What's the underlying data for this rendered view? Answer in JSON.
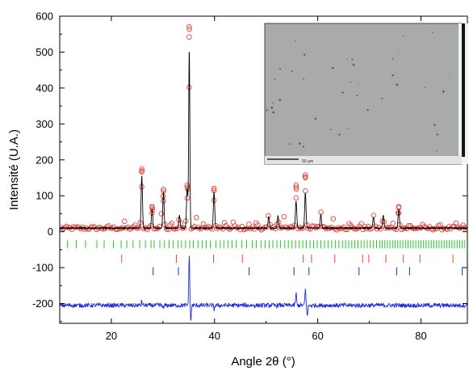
{
  "chart_data": {
    "type": "line",
    "xlabel": "Angle 2θ (°)",
    "ylabel": "Intensité (U.A.)",
    "xlim": [
      10,
      89
    ],
    "ylim": [
      -255,
      600
    ],
    "x_ticks": [
      "20",
      "40",
      "60",
      "80"
    ],
    "y_ticks": [
      "600",
      "500",
      "400",
      "300",
      "200",
      "100",
      "0",
      "-100",
      "-200"
    ],
    "grid": false,
    "legend": "none",
    "colors": {
      "observed": "#e8443a",
      "calculated": "#000000",
      "difference": "#1f2bd8",
      "phase1_reflections": "#22cc22",
      "phase2_reflections": "#e8443a",
      "phase3_reflections": "#1f2bd8"
    },
    "series": [
      {
        "role": "observed",
        "style": "open-circles",
        "baseline": 10,
        "peaks": [
          {
            "x": 19.6,
            "y": 14
          },
          {
            "x": 22.5,
            "y": 25
          },
          {
            "x": 24.7,
            "y": 18
          },
          {
            "x": 25.9,
            "y": 175
          },
          {
            "x": 27.9,
            "y": 70
          },
          {
            "x": 29.6,
            "y": 52
          },
          {
            "x": 30.1,
            "y": 118
          },
          {
            "x": 31.6,
            "y": 38
          },
          {
            "x": 33.2,
            "y": 50
          },
          {
            "x": 34.7,
            "y": 130
          },
          {
            "x": 35.1,
            "y": 570
          },
          {
            "x": 36.4,
            "y": 45
          },
          {
            "x": 38.0,
            "y": 25
          },
          {
            "x": 39.9,
            "y": 120
          },
          {
            "x": 42.0,
            "y": 25
          },
          {
            "x": 43.7,
            "y": 28
          },
          {
            "x": 46.7,
            "y": 18
          },
          {
            "x": 48.2,
            "y": 35
          },
          {
            "x": 50.5,
            "y": 48
          },
          {
            "x": 52.3,
            "y": 50
          },
          {
            "x": 53.5,
            "y": 40
          },
          {
            "x": 55.8,
            "y": 130
          },
          {
            "x": 57.6,
            "y": 158
          },
          {
            "x": 59.1,
            "y": 30
          },
          {
            "x": 60.6,
            "y": 55
          },
          {
            "x": 62.9,
            "y": 40
          },
          {
            "x": 64.9,
            "y": 22
          },
          {
            "x": 66.2,
            "y": 28
          },
          {
            "x": 68.4,
            "y": 25
          },
          {
            "x": 70.8,
            "y": 45
          },
          {
            "x": 72.7,
            "y": 52
          },
          {
            "x": 74.6,
            "y": 22
          },
          {
            "x": 75.7,
            "y": 70
          },
          {
            "x": 77.8,
            "y": 22
          },
          {
            "x": 80.2,
            "y": 20
          },
          {
            "x": 83.6,
            "y": 18
          },
          {
            "x": 86.7,
            "y": 22
          },
          {
            "x": 88.3,
            "y": 18
          }
        ]
      },
      {
        "role": "calculated",
        "style": "line",
        "baseline": 10,
        "peaks": [
          {
            "x": 25.9,
            "y": 155
          },
          {
            "x": 27.9,
            "y": 62
          },
          {
            "x": 30.1,
            "y": 110
          },
          {
            "x": 33.2,
            "y": 45
          },
          {
            "x": 34.7,
            "y": 120
          },
          {
            "x": 35.1,
            "y": 505
          },
          {
            "x": 39.9,
            "y": 110
          },
          {
            "x": 50.5,
            "y": 42
          },
          {
            "x": 52.3,
            "y": 45
          },
          {
            "x": 55.8,
            "y": 85
          },
          {
            "x": 57.6,
            "y": 108
          },
          {
            "x": 60.6,
            "y": 48
          },
          {
            "x": 70.8,
            "y": 40
          },
          {
            "x": 72.7,
            "y": 45
          },
          {
            "x": 75.7,
            "y": 62
          }
        ]
      },
      {
        "role": "difference",
        "style": "line",
        "offset": -205,
        "features": [
          {
            "x": 25.9,
            "y": 12
          },
          {
            "x": 30.1,
            "y": -10
          },
          {
            "x": 35.1,
            "y": 140
          },
          {
            "x": 35.4,
            "y": -45
          },
          {
            "x": 39.9,
            "y": -12
          },
          {
            "x": 55.8,
            "y": 35
          },
          {
            "x": 57.6,
            "y": 45
          },
          {
            "x": 58.0,
            "y": -30
          }
        ]
      }
    ],
    "reflection_markers": [
      {
        "role": "phase1",
        "y": -35,
        "positions": [
          11.5,
          13.2,
          15.0,
          17.2,
          18.6,
          20.4,
          21.9,
          23.0,
          24.2,
          25.5,
          26.6,
          27.7,
          28.3,
          29.4,
          30.3,
          31.2,
          32.0,
          32.9,
          33.6,
          34.4,
          35.2,
          35.9,
          36.8,
          37.6,
          38.4,
          39.2,
          40.3,
          41.1,
          41.8,
          42.6,
          43.4,
          44.2,
          45.3,
          46.2,
          47.3,
          48.1,
          49.0,
          49.8,
          50.6,
          51.3,
          52.1,
          52.8,
          53.6,
          54.3,
          55.0,
          55.7,
          56.4,
          57.1,
          57.8,
          58.5,
          59.2,
          59.9,
          60.6,
          61.3,
          62.0,
          62.7,
          63.4,
          64.1,
          64.8,
          65.4,
          66.0,
          66.6,
          67.2,
          67.8,
          68.4,
          69.0,
          69.6,
          70.2,
          70.8,
          71.4,
          72.0,
          72.5,
          73.0,
          73.5,
          74.0,
          74.5,
          75.0,
          75.5,
          76.0,
          76.5,
          77.0,
          77.5,
          78.0,
          78.5,
          79.0,
          79.5,
          80.0,
          80.5,
          81.0,
          81.5,
          82.0,
          82.5,
          83.0,
          83.5,
          84.0,
          84.5,
          85.0,
          85.5,
          86.0,
          86.5,
          87.0,
          87.5,
          88.0,
          88.5
        ]
      },
      {
        "role": "phase2",
        "y": -75,
        "positions": [
          22.0,
          32.6,
          39.8,
          45.4,
          57.2,
          58.8,
          63.3,
          68.7,
          69.9,
          73.2,
          76.6,
          79.8,
          86.2
        ]
      },
      {
        "role": "phase3",
        "y": -110,
        "positions": [
          28.1,
          33.0,
          46.7,
          55.4,
          58.3,
          68.0,
          75.3,
          77.8,
          88.0
        ]
      }
    ],
    "inset": {
      "kind": "micrograph",
      "scale_text": "50 µm"
    }
  }
}
